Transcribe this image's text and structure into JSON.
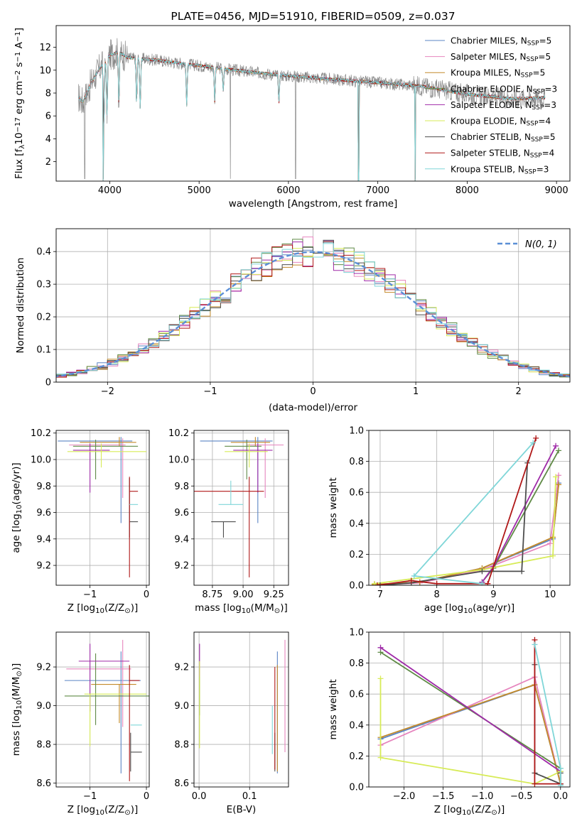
{
  "colors": {
    "Chabrier MILES": "#5b84c4",
    "Salpeter MILES": "#e685be",
    "Kroupa MILES": "#c38a2a",
    "Chabrier ELODIE": "#5f8a46",
    "Salpeter ELODIE": "#9f2aa8",
    "Kroupa ELODIE": "#d7eb57",
    "Chabrier STELIB": "#4d4d4d",
    "Salpeter STELIB": "#b01818",
    "Kroupa STELIB": "#7fd6d8",
    "data": "#888888",
    "normal_curve": "#5b8fd6"
  },
  "chart_data": [
    {
      "id": "spectrum",
      "type": "line",
      "title": "PLATE=0456, MJD=51910, FIBERID=0509, z=0.037",
      "xlabel": "wavelength [Angstrom, rest frame]",
      "ylabel": "Flux [fλ10⁻¹⁷ erg cm⁻² s⁻¹ A⁻¹]",
      "xlim": [
        3400,
        9150
      ],
      "ylim": [
        0.3,
        13.9
      ],
      "xticks": [
        4000,
        5000,
        6000,
        7000,
        8000,
        9000
      ],
      "yticks": [
        2,
        4,
        6,
        8,
        10,
        12
      ],
      "legend": "top-right",
      "legend_entries": [
        {
          "name": "Chabrier MILES",
          "nssp": "5"
        },
        {
          "name": "Salpeter MILES",
          "nssp": "5"
        },
        {
          "name": "Kroupa MILES",
          "nssp": "5"
        },
        {
          "name": "Chabrier ELODIE",
          "nssp": "3"
        },
        {
          "name": "Salpeter ELODIE",
          "nssp": "3"
        },
        {
          "name": "Kroupa ELODIE",
          "nssp": "4"
        },
        {
          "name": "Chabrier STELIB",
          "nssp": "5"
        },
        {
          "name": "Salpeter STELIB",
          "nssp": "4"
        },
        {
          "name": "Kroupa STELIB",
          "nssp": "3"
        }
      ],
      "continuum_x": [
        3650,
        3700,
        3800,
        3900,
        4000,
        4100,
        4200,
        4500,
        5000,
        5500,
        6000,
        6500,
        7000,
        7500,
        8000,
        8500,
        8900
      ],
      "continuum_y": [
        7.6,
        7.2,
        9.0,
        10.3,
        11.3,
        11.6,
        11.1,
        10.9,
        10.4,
        9.9,
        9.5,
        9.2,
        8.9,
        8.6,
        7.9,
        7.5,
        7.6
      ],
      "absorption_lines": [
        {
          "x": 3934,
          "depth": 0.55
        },
        {
          "x": 3969,
          "depth": 0.45
        },
        {
          "x": 4102,
          "depth": 0.4
        },
        {
          "x": 4300,
          "depth": 0.35
        },
        {
          "x": 4341,
          "depth": 0.4
        },
        {
          "x": 4861,
          "depth": 0.35
        },
        {
          "x": 5175,
          "depth": 0.3
        },
        {
          "x": 5270,
          "depth": 0.2
        },
        {
          "x": 5893,
          "depth": 0.25
        }
      ],
      "data_dropouts": [
        3720,
        3928,
        5350,
        6080,
        6785,
        7420
      ],
      "model_dropouts": [
        3925,
        6785,
        7420
      ]
    },
    {
      "id": "residuals",
      "type": "bar",
      "xlabel": "(data-model)/error",
      "ylabel": "Normed distribution",
      "xlim": [
        -2.5,
        2.5
      ],
      "ylim": [
        0,
        0.47
      ],
      "xticks": [
        -2,
        -1,
        0,
        1,
        2
      ],
      "yticks": [
        0.0,
        0.1,
        0.2,
        0.3,
        0.4
      ],
      "grid": true,
      "legend": "top-right",
      "curve_label": "N(0, 1)",
      "bin_width": 0.1,
      "series": [
        {
          "name": "Chabrier MILES",
          "noise_seed": 1
        },
        {
          "name": "Salpeter MILES",
          "noise_seed": 2
        },
        {
          "name": "Kroupa MILES",
          "noise_seed": 3
        },
        {
          "name": "Chabrier ELODIE",
          "noise_seed": 4
        },
        {
          "name": "Salpeter ELODIE",
          "noise_seed": 5
        },
        {
          "name": "Kroupa ELODIE",
          "noise_seed": 6
        },
        {
          "name": "Chabrier STELIB",
          "noise_seed": 7
        },
        {
          "name": "Salpeter STELIB",
          "noise_seed": 8
        },
        {
          "name": "Kroupa STELIB",
          "noise_seed": 9
        }
      ]
    },
    {
      "id": "age_vs_Z",
      "type": "scatter",
      "xlabel": "Z [log₁₀(Z/Z⊙)]",
      "ylabel": "age  [log₁₀(age/yr)]",
      "xlim": [
        -1.6,
        0.05
      ],
      "ylim": [
        9.05,
        10.22
      ],
      "xticks": [
        -1,
        0
      ],
      "yticks": [
        9.2,
        9.4,
        9.6,
        9.8,
        10.0,
        10.2
      ],
      "grid": true,
      "points": [
        {
          "series": "Chabrier MILES",
          "x": -0.45,
          "y": 10.14,
          "xerr": [
            1.12,
            0.2
          ],
          "yerr": [
            0.62,
            0.03
          ]
        },
        {
          "series": "Salpeter MILES",
          "x": -0.42,
          "y": 10.11,
          "xerr": [
            0.95,
            0.05
          ],
          "yerr": [
            0.4,
            0.05
          ]
        },
        {
          "series": "Kroupa MILES",
          "x": -0.48,
          "y": 10.13,
          "xerr": [
            0.7,
            0.3
          ],
          "yerr": [
            0.03,
            0.04
          ]
        },
        {
          "series": "Chabrier ELODIE",
          "x": -0.9,
          "y": 10.1,
          "xerr": [
            0.4,
            0.75
          ],
          "yerr": [
            0.25,
            0.05
          ]
        },
        {
          "series": "Salpeter ELODIE",
          "x": -1.0,
          "y": 10.07,
          "xerr": [
            0.3,
            0.35
          ],
          "yerr": [
            0.32,
            0.05
          ]
        },
        {
          "series": "Kroupa ELODIE",
          "x": -0.8,
          "y": 10.06,
          "xerr": [
            0.6,
            0.8
          ],
          "yerr": [
            0.12,
            0.06
          ]
        },
        {
          "series": "Chabrier STELIB",
          "x": -0.3,
          "y": 9.53,
          "xerr": [
            0.0,
            0.15
          ],
          "yerr": [
            0.12,
            0.33
          ]
        },
        {
          "series": "Salpeter STELIB",
          "x": -0.3,
          "y": 9.76,
          "xerr": [
            0.0,
            0.15
          ],
          "yerr": [
            0.65,
            0.11
          ]
        },
        {
          "series": "Kroupa STELIB",
          "x": -0.3,
          "y": 9.66,
          "xerr": [
            0.0,
            0.15
          ],
          "yerr": [
            0.0,
            0.0
          ]
        }
      ]
    },
    {
      "id": "age_vs_mass",
      "type": "scatter",
      "xlabel": "mass [log₁₀(M/M⊙)]",
      "ylabel": "",
      "xlim": [
        8.6,
        9.37
      ],
      "ylim": [
        9.05,
        10.22
      ],
      "xticks": [
        8.75,
        9.0,
        9.25
      ],
      "tick_labels": [
        "8.75",
        "9.00",
        "9.25"
      ],
      "yticks": [
        9.2,
        9.4,
        9.6,
        9.8,
        10.0,
        10.2
      ],
      "grid": true,
      "points": [
        {
          "series": "Chabrier MILES",
          "x": 9.12,
          "y": 10.14,
          "xerr": [
            0.47,
            0.12
          ],
          "yerr": [
            0.62,
            0.03
          ]
        },
        {
          "series": "Salpeter MILES",
          "x": 9.18,
          "y": 10.11,
          "xerr": [
            0.15,
            0.15
          ],
          "yerr": [
            0.4,
            0.05
          ]
        },
        {
          "series": "Kroupa MILES",
          "x": 9.1,
          "y": 10.13,
          "xerr": [
            0.2,
            0.12
          ],
          "yerr": [
            0.03,
            0.04
          ]
        },
        {
          "series": "Chabrier ELODIE",
          "x": 9.03,
          "y": 10.1,
          "xerr": [
            0.18,
            0.12
          ],
          "yerr": [
            0.25,
            0.05
          ]
        },
        {
          "series": "Salpeter ELODIE",
          "x": 9.12,
          "y": 10.07,
          "xerr": [
            0.2,
            0.12
          ],
          "yerr": [
            0.32,
            0.05
          ]
        },
        {
          "series": "Kroupa ELODIE",
          "x": 9.05,
          "y": 10.06,
          "xerr": [
            0.2,
            0.15
          ],
          "yerr": [
            0.12,
            0.06
          ]
        },
        {
          "series": "Chabrier STELIB",
          "x": 8.84,
          "y": 9.53,
          "xerr": [
            0.1,
            0.1
          ],
          "yerr": [
            0.12,
            0.0
          ]
        },
        {
          "series": "Salpeter STELIB",
          "x": 9.05,
          "y": 9.76,
          "xerr": [
            0.45,
            0.12
          ],
          "yerr": [
            0.65,
            0.11
          ]
        },
        {
          "series": "Kroupa STELIB",
          "x": 8.9,
          "y": 9.66,
          "xerr": [
            0.1,
            0.1
          ],
          "yerr": [
            0.0,
            0.18
          ]
        }
      ]
    },
    {
      "id": "weight_vs_age",
      "type": "line",
      "xlabel": "age  [log₁₀(age/yr)]",
      "ylabel": "mass weight",
      "xlim": [
        6.8,
        10.35
      ],
      "ylim": [
        0,
        1.0
      ],
      "xticks": [
        7,
        8,
        9,
        10
      ],
      "yticks": [
        0.0,
        0.2,
        0.4,
        0.6,
        0.8,
        1.0
      ],
      "grid": true,
      "series": [
        {
          "name": "Chabrier MILES",
          "x": [
            6.9,
            7.7,
            8.8,
            10.05,
            10.15
          ],
          "y": [
            0.005,
            0.02,
            0.11,
            0.3,
            0.66
          ]
        },
        {
          "name": "Salpeter MILES",
          "x": [
            6.9,
            7.7,
            8.8,
            10.0,
            10.15
          ],
          "y": [
            0.003,
            0.015,
            0.1,
            0.27,
            0.71
          ]
        },
        {
          "name": "Kroupa MILES",
          "x": [
            6.9,
            7.7,
            8.8,
            10.05,
            10.15
          ],
          "y": [
            0.005,
            0.02,
            0.11,
            0.31,
            0.65
          ]
        },
        {
          "name": "Chabrier ELODIE",
          "x": [
            8.8,
            9.0,
            10.15
          ],
          "y": [
            0.02,
            0.11,
            0.87
          ]
        },
        {
          "name": "Salpeter ELODIE",
          "x": [
            8.8,
            9.0,
            10.1
          ],
          "y": [
            0.02,
            0.12,
            0.9
          ]
        },
        {
          "name": "Kroupa ELODIE",
          "x": [
            6.9,
            8.8,
            10.05,
            10.1
          ],
          "y": [
            0.01,
            0.1,
            0.19,
            0.7
          ]
        },
        {
          "name": "Chabrier STELIB",
          "x": [
            7.0,
            7.55,
            8.8,
            9.5,
            9.6
          ],
          "y": [
            0.0,
            0.015,
            0.09,
            0.09,
            0.79
          ]
        },
        {
          "name": "Salpeter STELIB",
          "x": [
            6.95,
            7.55,
            8.0,
            8.9,
            9.75
          ],
          "y": [
            0.0,
            0.03,
            0.01,
            0.01,
            0.95
          ]
        },
        {
          "name": "Kroupa STELIB",
          "x": [
            8.8,
            7.6,
            9.7
          ],
          "y": [
            0.01,
            0.06,
            0.92
          ]
        }
      ]
    },
    {
      "id": "mass_vs_Z",
      "type": "scatter",
      "xlabel": "Z [log₁₀(Z/Z⊙)]",
      "ylabel": "mass [log₁₀(M/M⊙)]",
      "xlim": [
        -1.6,
        0.05
      ],
      "ylim": [
        8.58,
        9.38
      ],
      "xticks": [
        -1,
        0
      ],
      "yticks": [
        8.6,
        8.8,
        9.0,
        9.2
      ],
      "grid": true,
      "points": [
        {
          "series": "Chabrier MILES",
          "x": -0.45,
          "y": 9.13,
          "xerr": [
            1.0,
            0.35
          ],
          "yerr": [
            0.48,
            0.15
          ]
        },
        {
          "series": "Salpeter MILES",
          "x": -0.42,
          "y": 9.19,
          "xerr": [
            1.0,
            0.15
          ],
          "yerr": [
            0.3,
            0.15
          ]
        },
        {
          "series": "Kroupa MILES",
          "x": -0.48,
          "y": 9.11,
          "xerr": [
            0.5,
            0.3
          ],
          "yerr": [
            0.2,
            0.0
          ]
        },
        {
          "series": "Chabrier ELODIE",
          "x": -0.9,
          "y": 9.05,
          "xerr": [
            0.55,
            1.15
          ],
          "yerr": [
            0.15,
            0.22
          ]
        },
        {
          "series": "Salpeter ELODIE",
          "x": -1.0,
          "y": 9.23,
          "xerr": [
            0.2,
            0.7
          ],
          "yerr": [
            0.26,
            0.09
          ]
        },
        {
          "series": "Kroupa ELODIE",
          "x": -1.0,
          "y": 9.06,
          "xerr": [
            0.1,
            1.0
          ],
          "yerr": [
            0.27,
            0.0
          ]
        },
        {
          "series": "Chabrier STELIB",
          "x": -0.28,
          "y": 8.76,
          "xerr": [
            0.0,
            0.2
          ],
          "yerr": [
            0.1,
            0.1
          ]
        },
        {
          "series": "Salpeter STELIB",
          "x": -0.3,
          "y": 9.13,
          "xerr": [
            0.0,
            0.18
          ],
          "yerr": [
            0.52,
            0.08
          ]
        },
        {
          "series": "Kroupa STELIB",
          "x": -0.28,
          "y": 8.9,
          "xerr": [
            0.0,
            0.2
          ],
          "yerr": [
            0.0,
            0.0
          ]
        }
      ]
    },
    {
      "id": "mass_vs_ebv",
      "type": "scatter",
      "xlabel": "E(B-V)",
      "ylabel": "",
      "xlim": [
        -0.01,
        0.177
      ],
      "ylim": [
        8.58,
        9.38
      ],
      "xticks": [
        0.0,
        0.1
      ],
      "tick_labels": [
        "0.0",
        "0.1"
      ],
      "yticks": [
        8.6,
        8.8,
        9.0,
        9.2
      ],
      "grid": true,
      "points": [
        {
          "series": "Chabrier MILES",
          "x": 0.155,
          "y": 9.13,
          "yerr": [
            0.48,
            0.15
          ]
        },
        {
          "series": "Salpeter MILES",
          "x": 0.17,
          "y": 9.19,
          "yerr": [
            0.43,
            0.15
          ]
        },
        {
          "series": "Kroupa MILES",
          "x": 0.155,
          "y": 9.11,
          "yerr": [
            0.45,
            0.1
          ]
        },
        {
          "series": "Chabrier ELODIE",
          "x": 0.001,
          "y": 9.05,
          "yerr": [
            0.1,
            0.1
          ]
        },
        {
          "series": "Salpeter ELODIE",
          "x": 0.001,
          "y": 9.23,
          "yerr": [
            0.08,
            0.09
          ]
        },
        {
          "series": "Kroupa ELODIE",
          "x": 0.001,
          "y": 9.0,
          "yerr": [
            0.22,
            0.23
          ]
        },
        {
          "series": "Chabrier STELIB",
          "x": 0.15,
          "y": 8.76,
          "yerr": [
            0.1,
            0.1
          ]
        },
        {
          "series": "Salpeter STELIB",
          "x": 0.15,
          "y": 9.0,
          "yerr": [
            0.33,
            0.2
          ]
        },
        {
          "series": "Kroupa STELIB",
          "x": 0.145,
          "y": 8.9,
          "yerr": [
            0.15,
            0.1
          ]
        }
      ]
    },
    {
      "id": "weight_vs_Z",
      "type": "line",
      "xlabel": "Z [log₁₀(Z/Z⊙)]",
      "ylabel": "mass weight",
      "xlim": [
        -2.45,
        0.12
      ],
      "ylim": [
        0,
        1.0
      ],
      "xticks": [
        -2.0,
        -1.5,
        -1.0,
        -0.5,
        0.0
      ],
      "tick_labels": [
        "−2.0",
        "−1.5",
        "−1.0",
        "−0.5",
        "0.0"
      ],
      "yticks": [
        0.0,
        0.2,
        0.4,
        0.6,
        0.8,
        1.0
      ],
      "grid": true,
      "series": [
        {
          "name": "Chabrier MILES",
          "x": [
            -2.3,
            -0.33,
            0.0
          ],
          "y": [
            0.31,
            0.66,
            0.02
          ]
        },
        {
          "name": "Salpeter MILES",
          "x": [
            -2.3,
            -0.33,
            0.0
          ],
          "y": [
            0.27,
            0.71,
            0.02
          ]
        },
        {
          "name": "Kroupa MILES",
          "x": [
            -2.3,
            -0.33,
            0.0
          ],
          "y": [
            0.32,
            0.66,
            0.02
          ]
        },
        {
          "name": "Chabrier ELODIE",
          "x": [
            -2.3,
            0.0,
            0.0
          ],
          "y": [
            0.87,
            0.12,
            0.02
          ]
        },
        {
          "name": "Salpeter ELODIE",
          "x": [
            -2.3,
            0.0
          ],
          "y": [
            0.9,
            0.1
          ]
        },
        {
          "name": "Kroupa ELODIE",
          "x": [
            -2.3,
            -2.3,
            -0.33,
            0.0
          ],
          "y": [
            0.7,
            0.19,
            0.02,
            0.1
          ]
        },
        {
          "name": "Chabrier STELIB",
          "x": [
            -0.33,
            -0.33,
            0.0,
            0.0
          ],
          "y": [
            0.79,
            0.09,
            0.02,
            0.09
          ]
        },
        {
          "name": "Salpeter STELIB",
          "x": [
            -0.33,
            -0.33,
            0.0
          ],
          "y": [
            0.95,
            0.02,
            0.02
          ]
        },
        {
          "name": "Kroupa STELIB",
          "x": [
            -0.33,
            0.0,
            0.0
          ],
          "y": [
            0.92,
            0.12,
            0.01
          ]
        }
      ]
    }
  ]
}
